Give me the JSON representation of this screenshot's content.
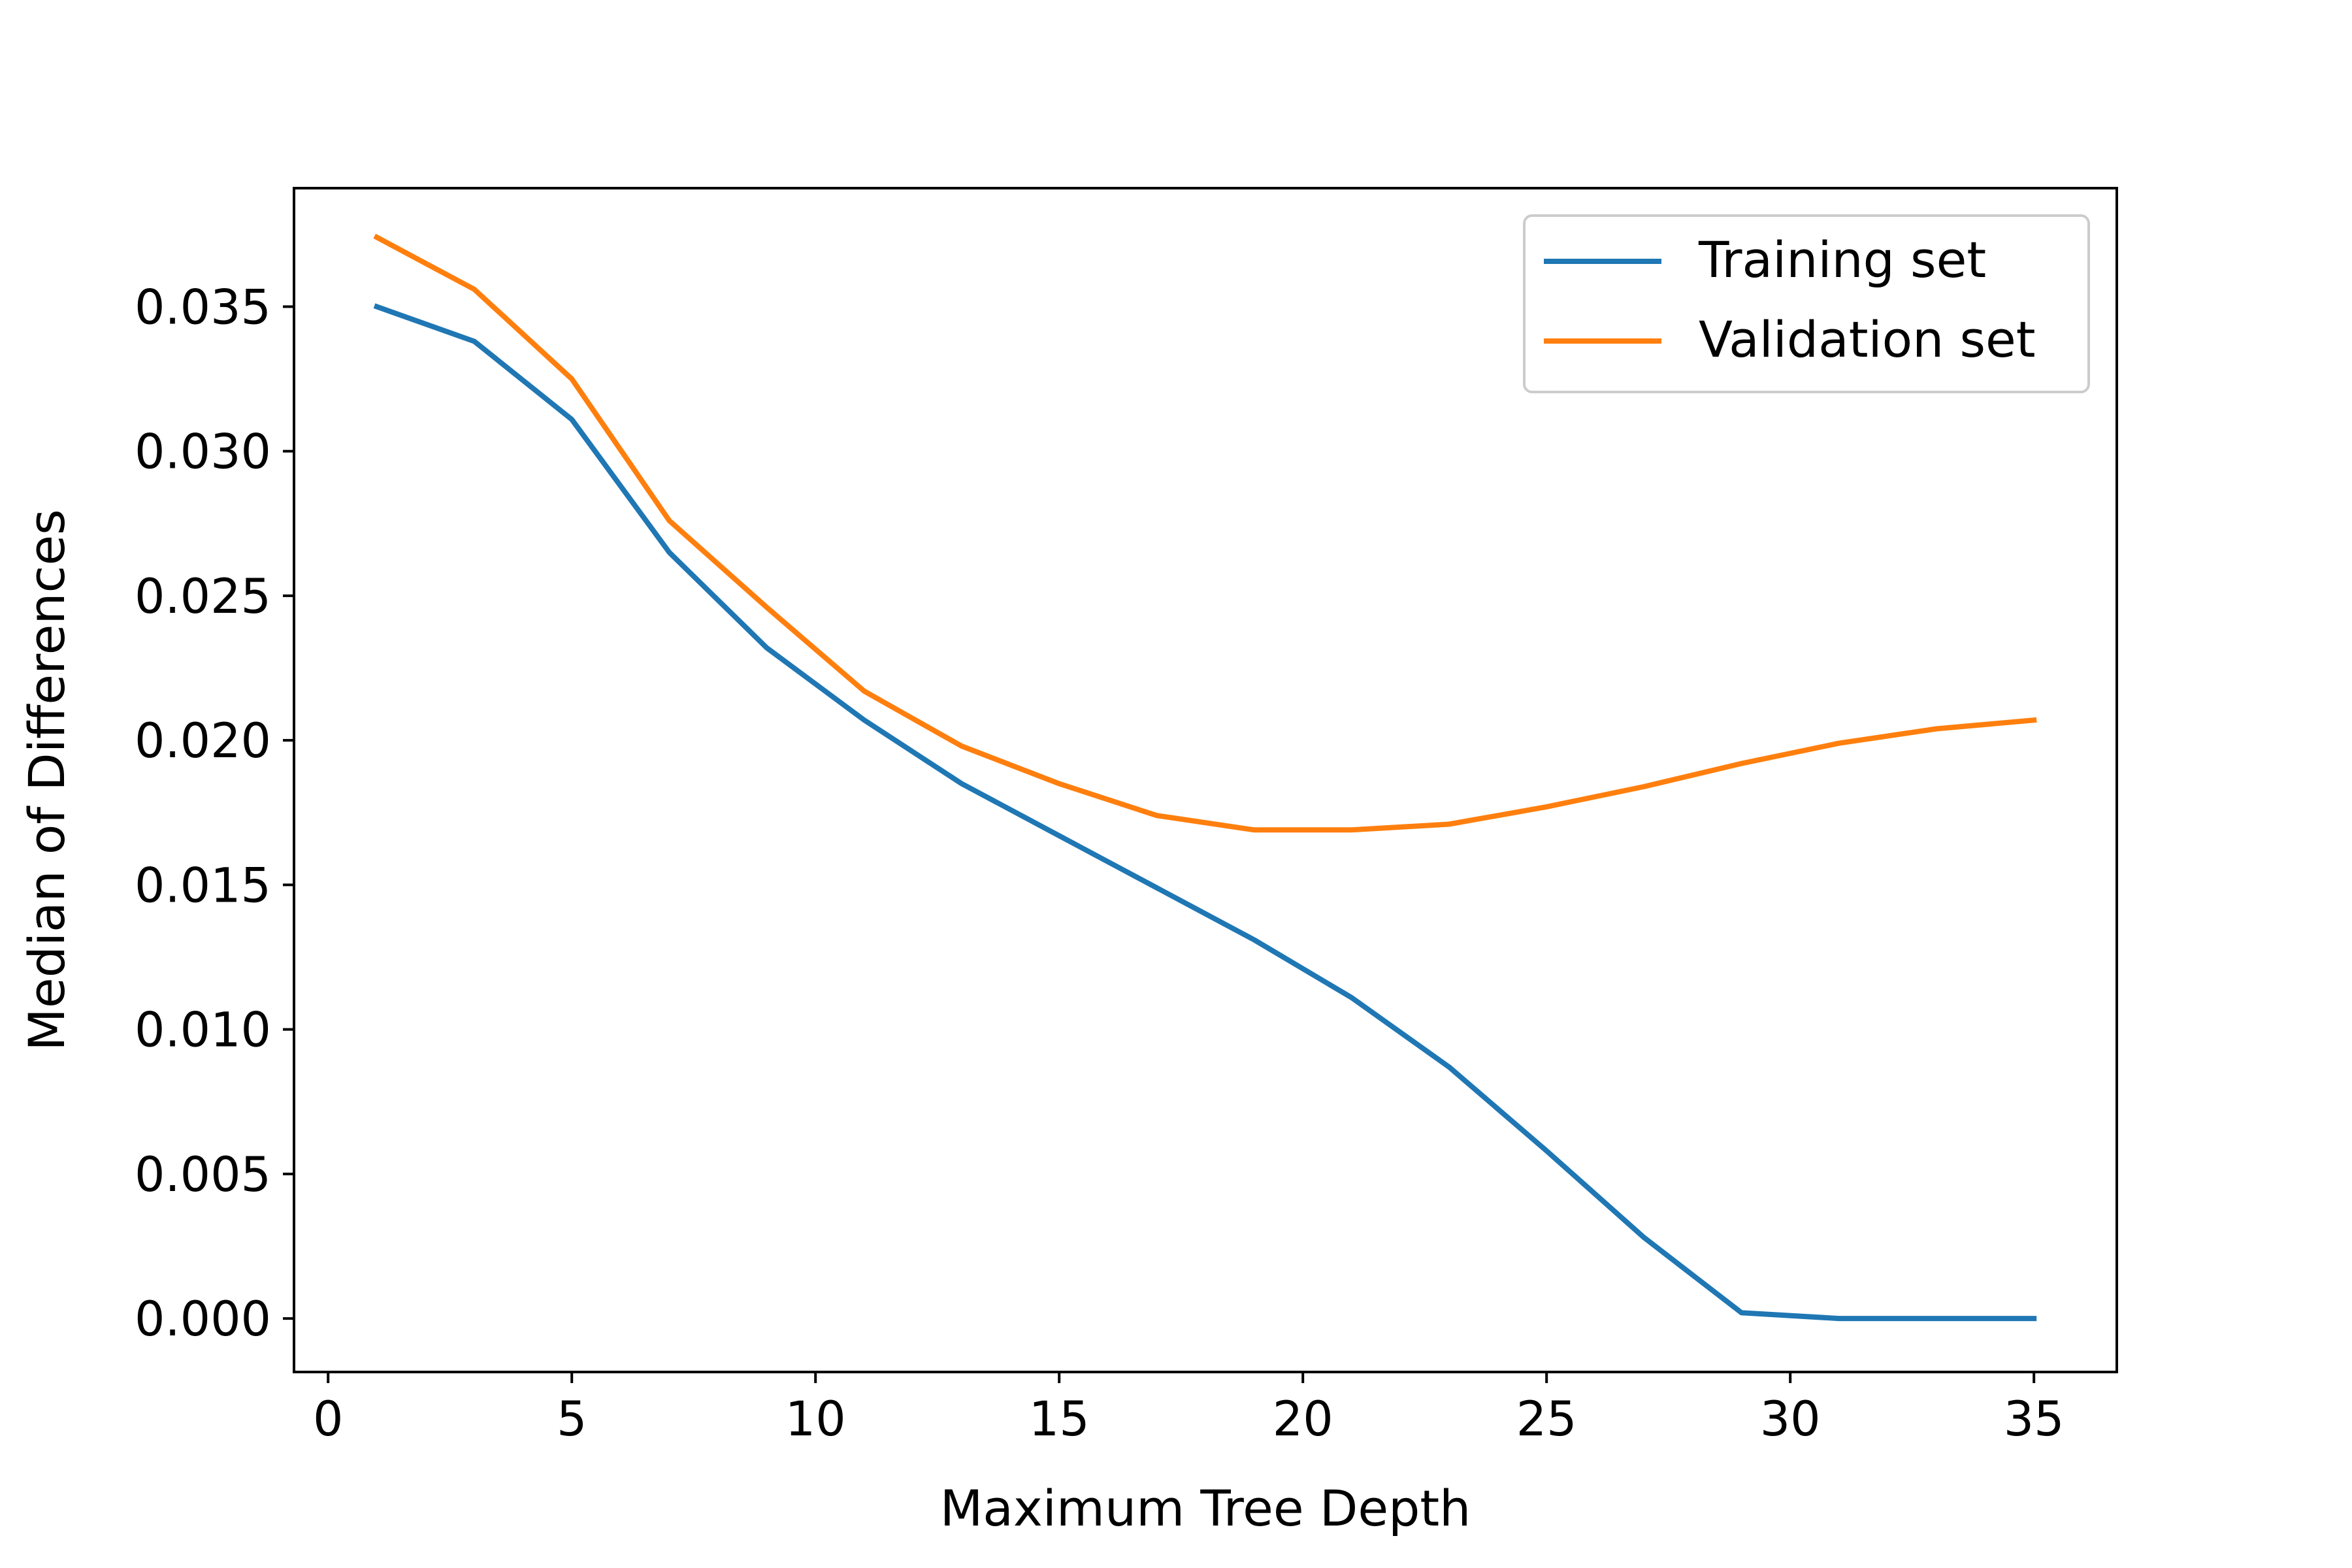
{
  "chart_data": {
    "type": "line",
    "title": "",
    "xlabel": "Maximum Tree Depth",
    "ylabel": "Median of Differences",
    "xlim": [
      -0.7,
      36.7
    ],
    "ylim": [
      -0.00185,
      0.0391
    ],
    "x_ticks": [
      0,
      5,
      10,
      15,
      20,
      25,
      30,
      35
    ],
    "x_tick_labels": [
      "0",
      "5",
      "10",
      "15",
      "20",
      "25",
      "30",
      "35"
    ],
    "y_ticks": [
      0.0,
      0.005,
      0.01,
      0.015,
      0.02,
      0.025,
      0.03,
      0.035
    ],
    "y_tick_labels": [
      "0.000",
      "0.005",
      "0.010",
      "0.015",
      "0.020",
      "0.025",
      "0.030",
      "0.035"
    ],
    "grid": false,
    "legend": "top-right",
    "x": [
      1,
      3,
      5,
      7,
      9,
      11,
      13,
      15,
      17,
      19,
      21,
      23,
      25,
      27,
      29,
      31,
      33,
      35
    ],
    "series": [
      {
        "name": "Training set",
        "color": "#1f77b4",
        "values": [
          0.035,
          0.0338,
          0.0311,
          0.0265,
          0.0232,
          0.0207,
          0.0185,
          0.0167,
          0.0149,
          0.0131,
          0.0111,
          0.0087,
          0.0058,
          0.0028,
          0.0002,
          0.0,
          0.0,
          0.0
        ]
      },
      {
        "name": "Validation set",
        "color": "#ff7f0e",
        "values": [
          0.0374,
          0.0356,
          0.0325,
          0.0276,
          0.0246,
          0.0217,
          0.0198,
          0.0185,
          0.0174,
          0.0169,
          0.0169,
          0.0171,
          0.0177,
          0.0184,
          0.0192,
          0.0199,
          0.0204,
          0.0207
        ]
      }
    ]
  }
}
